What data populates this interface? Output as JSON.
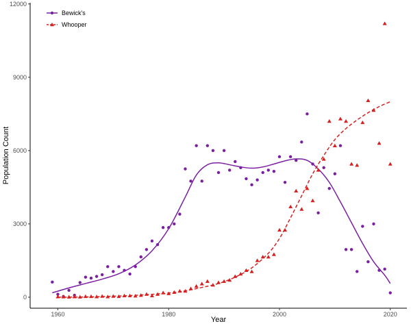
{
  "chart_data": {
    "type": "scatter",
    "xlabel": "Year",
    "ylabel": "Population Count",
    "xlim": [
      1955,
      2023
    ],
    "ylim": [
      -450,
      12050
    ],
    "x_ticks": [
      1960,
      1980,
      2000,
      2020
    ],
    "y_ticks": [
      0,
      3000,
      6000,
      9000,
      12000
    ],
    "grid": false,
    "legend_position": "top-left",
    "series": [
      {
        "name": "Bewick's",
        "color": "#7B1FA2",
        "marker": "circle",
        "line_style": "solid",
        "points": [
          [
            1959,
            620
          ],
          [
            1960,
            120
          ],
          [
            1961,
            30
          ],
          [
            1962,
            280
          ],
          [
            1963,
            80
          ],
          [
            1964,
            600
          ],
          [
            1965,
            820
          ],
          [
            1966,
            780
          ],
          [
            1967,
            850
          ],
          [
            1968,
            920
          ],
          [
            1969,
            1250
          ],
          [
            1970,
            1050
          ],
          [
            1971,
            1250
          ],
          [
            1972,
            1100
          ],
          [
            1973,
            950
          ],
          [
            1974,
            1250
          ],
          [
            1975,
            1650
          ],
          [
            1976,
            1950
          ],
          [
            1977,
            2300
          ],
          [
            1978,
            2150
          ],
          [
            1979,
            2850
          ],
          [
            1980,
            2850
          ],
          [
            1981,
            3000
          ],
          [
            1982,
            3400
          ],
          [
            1983,
            5250
          ],
          [
            1984,
            4750
          ],
          [
            1985,
            6200
          ],
          [
            1986,
            4750
          ],
          [
            1987,
            6200
          ],
          [
            1988,
            6000
          ],
          [
            1989,
            5100
          ],
          [
            1990,
            6000
          ],
          [
            1991,
            5200
          ],
          [
            1992,
            5550
          ],
          [
            1993,
            5300
          ],
          [
            1994,
            4850
          ],
          [
            1995,
            4600
          ],
          [
            1996,
            4800
          ],
          [
            1997,
            5100
          ],
          [
            1998,
            5200
          ],
          [
            1999,
            5150
          ],
          [
            2000,
            5750
          ],
          [
            2001,
            4700
          ],
          [
            2002,
            5750
          ],
          [
            2003,
            5600
          ],
          [
            2004,
            6350
          ],
          [
            2005,
            7500
          ],
          [
            2006,
            5450
          ],
          [
            2007,
            3450
          ],
          [
            2008,
            5300
          ],
          [
            2009,
            4450
          ],
          [
            2010,
            5050
          ],
          [
            2011,
            6200
          ],
          [
            2012,
            1950
          ],
          [
            2013,
            1950
          ],
          [
            2014,
            1050
          ],
          [
            2015,
            2900
          ],
          [
            2016,
            1450
          ],
          [
            2017,
            3000
          ],
          [
            2018,
            1100
          ],
          [
            2019,
            1150
          ],
          [
            2020,
            180
          ]
        ],
        "trend": [
          [
            1959,
            180
          ],
          [
            1962,
            380
          ],
          [
            1965,
            560
          ],
          [
            1968,
            740
          ],
          [
            1971,
            960
          ],
          [
            1974,
            1320
          ],
          [
            1977,
            1900
          ],
          [
            1980,
            2800
          ],
          [
            1983,
            4100
          ],
          [
            1985,
            5000
          ],
          [
            1987,
            5420
          ],
          [
            1989,
            5500
          ],
          [
            1991,
            5420
          ],
          [
            1993,
            5330
          ],
          [
            1995,
            5280
          ],
          [
            1997,
            5330
          ],
          [
            1999,
            5450
          ],
          [
            2001,
            5580
          ],
          [
            2003,
            5660
          ],
          [
            2005,
            5600
          ],
          [
            2007,
            5250
          ],
          [
            2009,
            4700
          ],
          [
            2011,
            3900
          ],
          [
            2013,
            3050
          ],
          [
            2015,
            2200
          ],
          [
            2017,
            1450
          ],
          [
            2019,
            900
          ],
          [
            2020,
            560
          ]
        ]
      },
      {
        "name": "Whooper",
        "color": "#D62020",
        "marker": "triangle",
        "line_style": "dashed",
        "points": [
          [
            1960,
            20
          ],
          [
            1961,
            15
          ],
          [
            1962,
            10
          ],
          [
            1963,
            20
          ],
          [
            1964,
            10
          ],
          [
            1965,
            30
          ],
          [
            1966,
            30
          ],
          [
            1967,
            20
          ],
          [
            1968,
            40
          ],
          [
            1969,
            20
          ],
          [
            1970,
            40
          ],
          [
            1971,
            30
          ],
          [
            1972,
            60
          ],
          [
            1973,
            60
          ],
          [
            1974,
            50
          ],
          [
            1975,
            80
          ],
          [
            1976,
            120
          ],
          [
            1977,
            60
          ],
          [
            1978,
            120
          ],
          [
            1979,
            180
          ],
          [
            1980,
            150
          ],
          [
            1981,
            200
          ],
          [
            1982,
            250
          ],
          [
            1983,
            250
          ],
          [
            1984,
            350
          ],
          [
            1985,
            450
          ],
          [
            1986,
            550
          ],
          [
            1987,
            650
          ],
          [
            1988,
            500
          ],
          [
            1989,
            600
          ],
          [
            1990,
            650
          ],
          [
            1991,
            700
          ],
          [
            1992,
            850
          ],
          [
            1993,
            950
          ],
          [
            1994,
            1100
          ],
          [
            1995,
            1050
          ],
          [
            1996,
            1500
          ],
          [
            1997,
            1650
          ],
          [
            1998,
            1650
          ],
          [
            1999,
            1750
          ],
          [
            2000,
            2750
          ],
          [
            2001,
            2750
          ],
          [
            2002,
            3700
          ],
          [
            2003,
            4350
          ],
          [
            2004,
            3600
          ],
          [
            2005,
            4450
          ],
          [
            2006,
            3950
          ],
          [
            2007,
            5200
          ],
          [
            2008,
            5650
          ],
          [
            2009,
            7200
          ],
          [
            2010,
            6200
          ],
          [
            2011,
            7300
          ],
          [
            2012,
            7200
          ],
          [
            2013,
            5450
          ],
          [
            2014,
            5400
          ],
          [
            2015,
            7150
          ],
          [
            2016,
            8050
          ],
          [
            2017,
            7650
          ],
          [
            2018,
            6300
          ],
          [
            2019,
            11200
          ],
          [
            2020,
            5450
          ]
        ],
        "trend": [
          [
            1960,
            0
          ],
          [
            1965,
            10
          ],
          [
            1970,
            40
          ],
          [
            1975,
            90
          ],
          [
            1980,
            170
          ],
          [
            1983,
            260
          ],
          [
            1986,
            400
          ],
          [
            1989,
            560
          ],
          [
            1992,
            820
          ],
          [
            1995,
            1200
          ],
          [
            1998,
            1800
          ],
          [
            2000,
            2400
          ],
          [
            2002,
            3250
          ],
          [
            2004,
            4150
          ],
          [
            2006,
            5050
          ],
          [
            2008,
            5800
          ],
          [
            2010,
            6450
          ],
          [
            2012,
            6900
          ],
          [
            2014,
            7250
          ],
          [
            2016,
            7550
          ],
          [
            2018,
            7800
          ],
          [
            2020,
            8000
          ]
        ]
      }
    ]
  }
}
